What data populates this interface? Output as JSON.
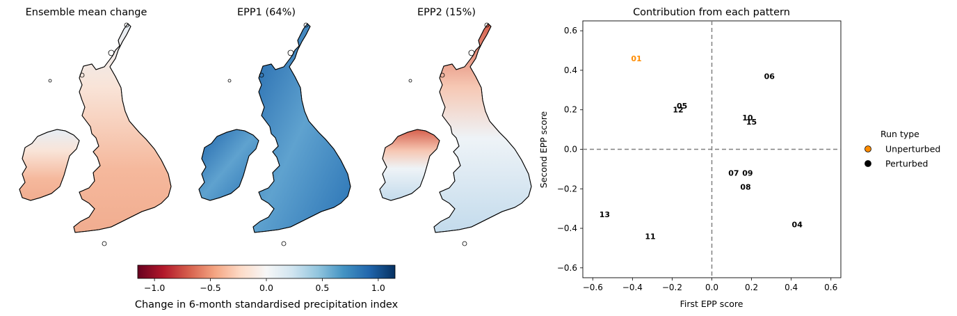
{
  "maps": {
    "panels": [
      {
        "title": "Ensemble mean change",
        "pattern": "mean"
      },
      {
        "title": "EPP1 (64%)",
        "pattern": "epp1"
      },
      {
        "title": "EPP2 (15%)",
        "pattern": "epp2"
      }
    ],
    "colorbar": {
      "label": "Change in 6-month standardised precipitation index",
      "ticks": [
        "−1.0",
        "−0.5",
        "0.0",
        "0.5",
        "1.0"
      ],
      "tick_values": [
        -1.0,
        -0.5,
        0.0,
        0.5,
        1.0
      ],
      "range": [
        -1.15,
        1.15
      ],
      "colors": [
        "#67001f",
        "#b2182b",
        "#d6604d",
        "#f4a582",
        "#fddbc7",
        "#f7f7f7",
        "#d1e5f0",
        "#92c5de",
        "#4393c3",
        "#2166ac",
        "#053061"
      ]
    }
  },
  "chart_data": {
    "type": "scatter",
    "title": "Contribution from each pattern",
    "xlabel": "First EPP score",
    "ylabel": "Second EPP score",
    "xlim": [
      -0.65,
      0.65
    ],
    "ylim": [
      -0.65,
      0.65
    ],
    "xticks": [
      "−0.6",
      "−0.4",
      "−0.2",
      "0.0",
      "0.2",
      "0.4",
      "0.6"
    ],
    "xtick_values": [
      -0.6,
      -0.4,
      -0.2,
      0.0,
      0.2,
      0.4,
      0.6
    ],
    "yticks": [
      "−0.6",
      "−0.4",
      "−0.2",
      "0.0",
      "0.2",
      "0.4",
      "0.6"
    ],
    "ytick_values": [
      -0.6,
      -0.4,
      -0.2,
      0.0,
      0.2,
      0.4,
      0.6
    ],
    "reference_lines": {
      "x": 0.0,
      "y": 0.0,
      "style": "dashed",
      "color": "#808080"
    },
    "points": [
      {
        "label": "01",
        "x": -0.38,
        "y": 0.46,
        "type": "Unperturbed"
      },
      {
        "label": "04",
        "x": 0.43,
        "y": -0.38,
        "type": "Perturbed"
      },
      {
        "label": "05",
        "x": -0.15,
        "y": 0.22,
        "type": "Perturbed"
      },
      {
        "label": "06",
        "x": 0.29,
        "y": 0.37,
        "type": "Perturbed"
      },
      {
        "label": "07",
        "x": 0.11,
        "y": -0.12,
        "type": "Perturbed"
      },
      {
        "label": "08",
        "x": 0.17,
        "y": -0.19,
        "type": "Perturbed"
      },
      {
        "label": "09",
        "x": 0.18,
        "y": -0.12,
        "type": "Perturbed"
      },
      {
        "label": "10",
        "x": 0.18,
        "y": 0.16,
        "type": "Perturbed"
      },
      {
        "label": "11",
        "x": -0.31,
        "y": -0.44,
        "type": "Perturbed"
      },
      {
        "label": "12",
        "x": -0.17,
        "y": 0.2,
        "type": "Perturbed"
      },
      {
        "label": "13",
        "x": -0.54,
        "y": -0.33,
        "type": "Perturbed"
      },
      {
        "label": "15",
        "x": 0.2,
        "y": 0.14,
        "type": "Perturbed"
      }
    ],
    "legend": {
      "title": "Run type",
      "placement": "right-outside",
      "entries": [
        {
          "label": "Unperturbed",
          "color": "#ff8c00"
        },
        {
          "label": "Perturbed",
          "color": "#000000"
        }
      ]
    },
    "grid": false
  }
}
